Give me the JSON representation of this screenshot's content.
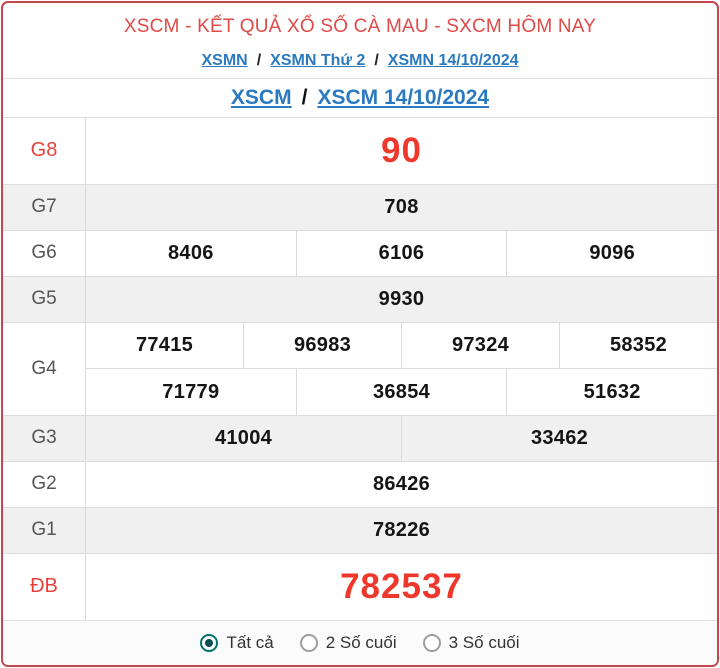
{
  "header": {
    "title": "XSCM - KẾT QUẢ XỔ SỐ CÀ MAU - SXCM HÔM NAY",
    "breadcrumb": {
      "separator": "/",
      "items": [
        "XSMN",
        "XSMN Thứ 2",
        "XSMN 14/10/2024"
      ]
    }
  },
  "subheader": {
    "separator": "/",
    "items": [
      "XSCM",
      "XSCM 14/10/2024"
    ]
  },
  "results": {
    "rows": [
      {
        "label": "G8",
        "highlight": true,
        "lines": [
          [
            "90"
          ]
        ]
      },
      {
        "label": "G7",
        "highlight": false,
        "lines": [
          [
            "708"
          ]
        ]
      },
      {
        "label": "G6",
        "highlight": false,
        "lines": [
          [
            "8406",
            "6106",
            "9096"
          ]
        ]
      },
      {
        "label": "G5",
        "highlight": false,
        "lines": [
          [
            "9930"
          ]
        ]
      },
      {
        "label": "G4",
        "highlight": false,
        "lines": [
          [
            "77415",
            "96983",
            "97324",
            "58352"
          ],
          [
            "71779",
            "36854",
            "51632"
          ]
        ]
      },
      {
        "label": "G3",
        "highlight": false,
        "lines": [
          [
            "41004",
            "33462"
          ]
        ]
      },
      {
        "label": "G2",
        "highlight": false,
        "lines": [
          [
            "86426"
          ]
        ]
      },
      {
        "label": "G1",
        "highlight": false,
        "lines": [
          [
            "78226"
          ]
        ]
      },
      {
        "label": "ĐB",
        "highlight": true,
        "lines": [
          [
            "782537"
          ]
        ]
      }
    ]
  },
  "filter": {
    "options": [
      {
        "label": "Tất cả",
        "selected": true
      },
      {
        "label": "2 Số cuối",
        "selected": false
      },
      {
        "label": "3 Số cuối",
        "selected": false
      }
    ]
  },
  "colors": {
    "card_border": "#c4474f",
    "title_red": "#e04a47",
    "highlight_red": "#ef372c",
    "link_blue": "#2b7abf",
    "shade_gray": "#f0f0f0",
    "radio_teal": "#00756b"
  }
}
